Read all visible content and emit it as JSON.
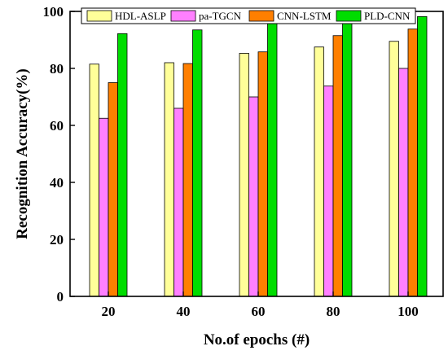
{
  "chart_data": {
    "type": "bar",
    "xlabel": "No.of epochs (#)",
    "ylabel": "Recognition Accuracy(%)",
    "categories": [
      "20",
      "40",
      "60",
      "80",
      "100"
    ],
    "ylim": [
      0,
      100
    ],
    "yticks": [
      0,
      20,
      40,
      60,
      80,
      100
    ],
    "grid": false,
    "legend_position": "top",
    "series": [
      {
        "name": "HDL-ASLP",
        "color": "#FFFF99",
        "values": [
          81.5,
          82,
          85.3,
          87.5,
          89.5
        ]
      },
      {
        "name": "pa-TGCN",
        "color": "#FF80FF",
        "values": [
          62.5,
          66,
          70,
          73.8,
          80
        ]
      },
      {
        "name": "CNN-LSTM",
        "color": "#FF7F00",
        "values": [
          75,
          81.7,
          85.8,
          91.5,
          93.8
        ]
      },
      {
        "name": "PLD-CNN",
        "color": "#00DD00",
        "values": [
          92.2,
          93.5,
          97,
          97.2,
          98.2
        ]
      }
    ]
  }
}
